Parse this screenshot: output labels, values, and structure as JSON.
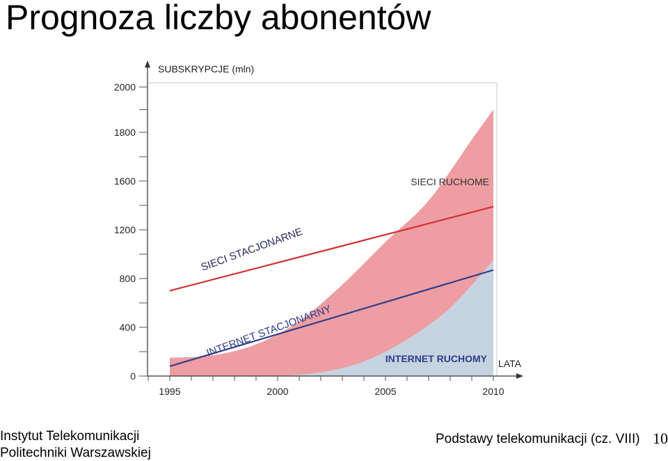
{
  "slide": {
    "title": "Prognoza liczby abonentów",
    "footer_left_line1": "Instytut Telekomunikacji",
    "footer_left_line2": "Politechniki Warszawskiej",
    "footer_right": "Podstawy telekomunikacji (cz. VIII)",
    "page_number": "10"
  },
  "chart_data": {
    "type": "area",
    "ylabel": "SUBSKRYPCJE (mln)",
    "xlabel": "LATA",
    "x_ticks": [
      "1995",
      "2000",
      "2005",
      "2010"
    ],
    "y_ticks": [
      "0",
      "400",
      "800",
      "1200",
      "1600",
      "1800",
      "2000"
    ],
    "colors": {
      "mobile_area": "#ee9ea3",
      "mobile_internet_area": "#c6d3e0",
      "fixed_line": "#d43232",
      "fixed_internet_line": "#2d3d8a"
    },
    "series": [
      {
        "name": "SIECI RUCHOME",
        "style": "area",
        "x": [
          1995,
          1997,
          1999,
          2001,
          2003,
          2005,
          2007,
          2009,
          2010
        ],
        "y": [
          150,
          170,
          260,
          450,
          750,
          1100,
          1440,
          1770,
          1900
        ]
      },
      {
        "name": "INTERNET RUCHOMY",
        "style": "area",
        "x": [
          2000,
          2002,
          2004,
          2006,
          2008,
          2010
        ],
        "y": [
          0,
          30,
          120,
          300,
          560,
          950
        ]
      },
      {
        "name": "SIECI STACJONARNE",
        "style": "line",
        "x": [
          1995,
          2010
        ],
        "y": [
          700,
          1390
        ]
      },
      {
        "name": "INTERNET STACJONARNY",
        "style": "line",
        "x": [
          1995,
          2010
        ],
        "y": [
          80,
          870
        ]
      }
    ]
  }
}
